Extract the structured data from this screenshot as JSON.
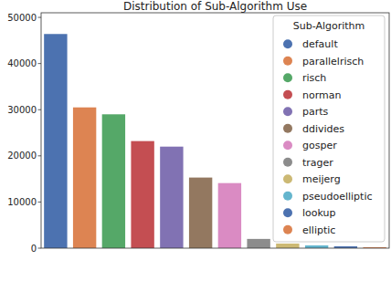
{
  "chart_data": {
    "type": "bar",
    "title": "Distribution of Sub-Algorithm Use",
    "legend_title": "Sub-Algorithm",
    "categories": [
      "default",
      "parallelrisch",
      "risch",
      "norman",
      "parts",
      "ddivides",
      "gosper",
      "trager",
      "meijerg",
      "pseudoelliptic",
      "lookup",
      "elliptic"
    ],
    "values": [
      46400,
      30500,
      29000,
      23200,
      22000,
      15300,
      14100,
      2000,
      1000,
      600,
      400,
      200
    ],
    "colors": [
      "#4c72b0",
      "#dd8452",
      "#55a868",
      "#c44e52",
      "#8172b3",
      "#937860",
      "#da8bc3",
      "#8c8c8c",
      "#ccb974",
      "#64b5cd",
      "#4c72b0",
      "#dd8452"
    ],
    "ylim": [
      0,
      51000
    ],
    "yticks": [
      0,
      10000,
      20000,
      30000,
      40000,
      50000
    ],
    "grid": false,
    "legend": "upper right",
    "tick_labels": "y"
  }
}
